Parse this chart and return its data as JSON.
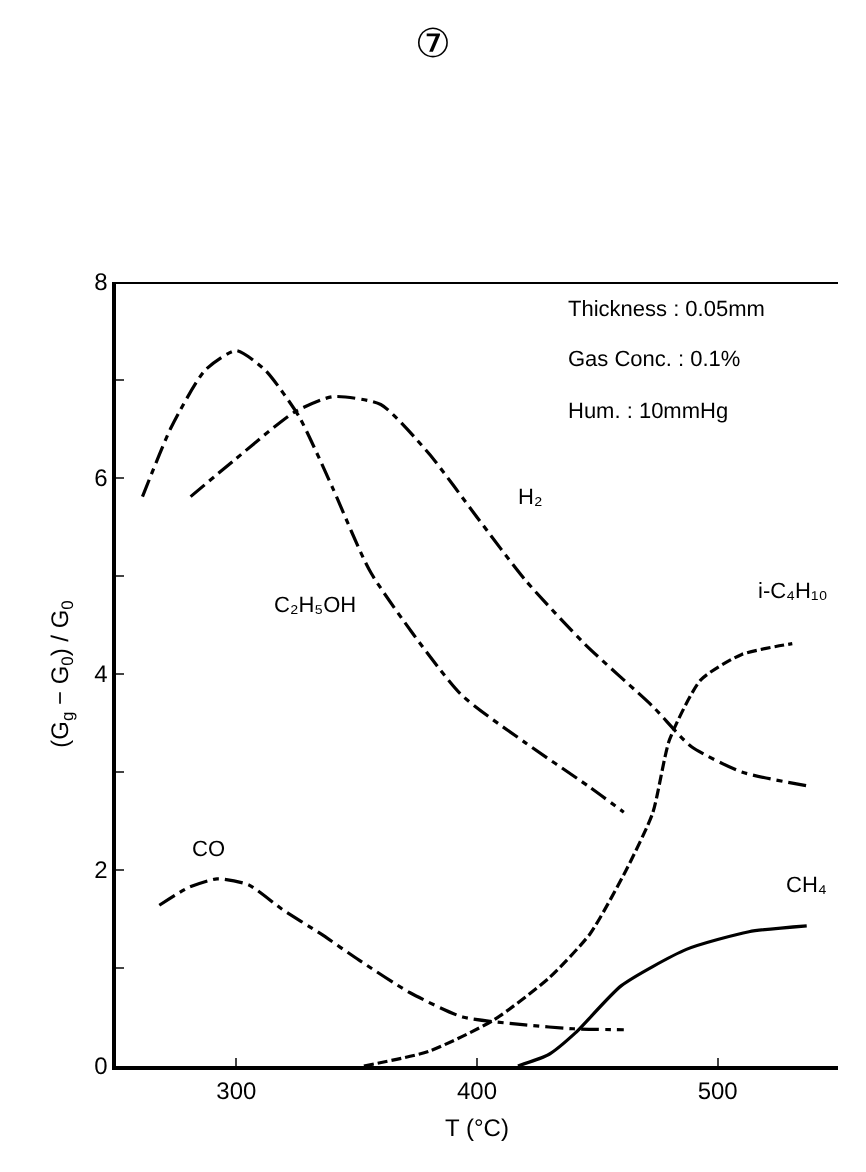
{
  "chart_data": {
    "type": "line",
    "title": "⑦",
    "xlabel": "T (°C)",
    "ylabel": "(G$_{g}$ − G$_{0}$) / G$_{0}$",
    "annotations": [
      "Thickness : 0.05mm",
      "Gas Conc. : 0.1%",
      "Hum. : 10mmHg"
    ],
    "xlim": [
      250,
      550
    ],
    "xticks": [
      300,
      400,
      500
    ],
    "ylim": [
      0,
      8
    ],
    "yticks": [
      0,
      {
        "value": 1,
        "label": null
      },
      2,
      {
        "value": 3,
        "label": null
      },
      4,
      {
        "value": 5,
        "label": null
      },
      6,
      {
        "value": 7,
        "label": null
      },
      8
    ],
    "grid": false,
    "legend": false,
    "marker": "none",
    "series": [
      {
        "name": "H₂",
        "color": "#000000",
        "line_style": "dashdot",
        "x": [
          281,
          300,
          324,
          340,
          360,
          380,
          400,
          420,
          445,
          473,
          489,
          510,
          537
        ],
        "values": [
          5.81,
          6.2,
          6.67,
          6.83,
          6.75,
          6.25,
          5.6,
          4.96,
          4.3,
          3.67,
          3.26,
          3.0,
          2.86
        ]
      },
      {
        "name": "C₂H₅OH",
        "color": "#000000",
        "line_style": "dashdot",
        "x": [
          261,
          273,
          287,
          300,
          312,
          326,
          340,
          356,
          393,
          420,
          446,
          461
        ],
        "values": [
          5.81,
          6.52,
          7.1,
          7.3,
          7.1,
          6.63,
          5.9,
          5.03,
          3.8,
          3.3,
          2.86,
          2.59
        ]
      },
      {
        "name": "CO",
        "color": "#000000",
        "line_style": "dashdot",
        "x": [
          268,
          280,
          292,
          305,
          319,
          335,
          351,
          372,
          394,
          420,
          440,
          461
        ],
        "values": [
          1.64,
          1.82,
          1.91,
          1.85,
          1.6,
          1.35,
          1.08,
          0.75,
          0.5,
          0.42,
          0.38,
          0.37
        ]
      },
      {
        "name": "i-C₄H₁₀",
        "color": "#000000",
        "line_style": "dashed",
        "x": [
          353,
          380,
          407,
          430,
          447,
          462,
          473,
          480,
          493,
          510,
          531
        ],
        "values": [
          0,
          0.15,
          0.47,
          0.9,
          1.35,
          2.0,
          2.58,
          3.33,
          3.94,
          4.2,
          4.31
        ]
      },
      {
        "name": "CH₄",
        "color": "#000000",
        "line_style": "solid",
        "x": [
          417,
          430,
          441,
          460,
          487,
          513,
          537
        ],
        "values": [
          0,
          0.12,
          0.34,
          0.82,
          1.19,
          1.37,
          1.43
        ]
      }
    ]
  }
}
